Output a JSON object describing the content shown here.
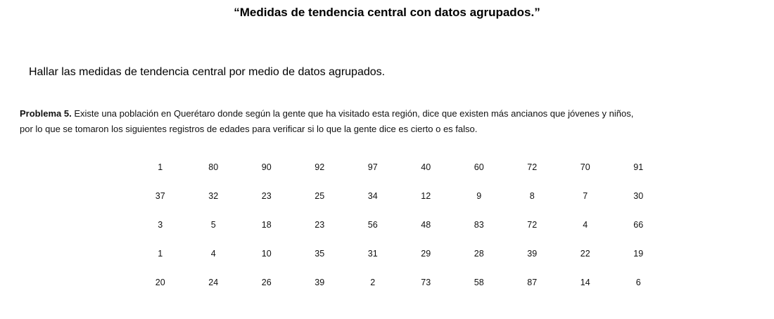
{
  "title": "“Medidas de tendencia central con datos agrupados.”",
  "instruction": "Hallar las medidas de tendencia central por medio de datos agrupados.",
  "problem": {
    "label": "Problema 5.",
    "text_line1": "Existe una población en Querétaro donde según la gente que ha visitado esta región, dice que existen más ancianos que jóvenes y niños,",
    "text_line2": "por lo que se tomaron los siguientes registros de edades para verificar si lo que la gente dice es cierto o es falso."
  },
  "ages": [
    [
      "1",
      "80",
      "90",
      "92",
      "97",
      "40",
      "60",
      "72",
      "70",
      "91"
    ],
    [
      "37",
      "32",
      "23",
      "25",
      "34",
      "12",
      "9",
      "8",
      "7",
      "30"
    ],
    [
      "3",
      "5",
      "18",
      "23",
      "56",
      "48",
      "83",
      "72",
      "4",
      "66"
    ],
    [
      "1",
      "4",
      "10",
      "35",
      "31",
      "29",
      "28",
      "39",
      "22",
      "19"
    ],
    [
      "20",
      "24",
      "26",
      "39",
      "2",
      "73",
      "58",
      "87",
      "14",
      "6"
    ]
  ]
}
